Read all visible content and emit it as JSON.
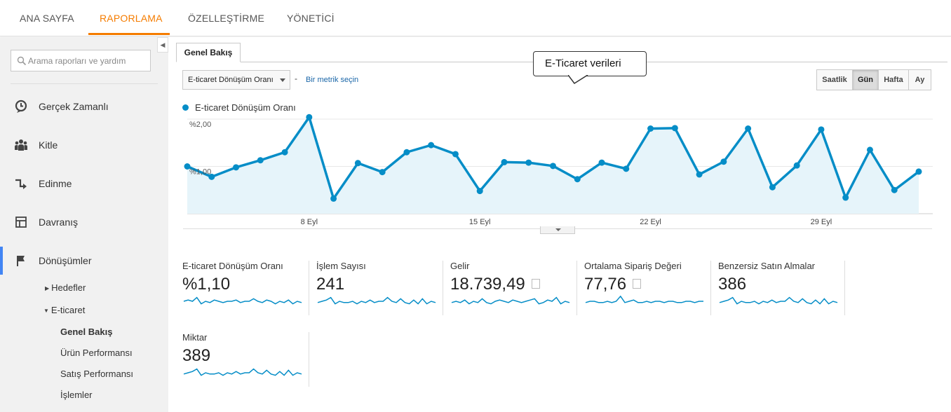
{
  "nav": {
    "tabs": [
      {
        "label": "ANA SAYFA"
      },
      {
        "label": "RAPORLAMA"
      },
      {
        "label": "ÖZELLEŞTİRME"
      },
      {
        "label": "YÖNETİCİ"
      }
    ]
  },
  "sidebar": {
    "search_placeholder": "Arama raporları ve yardım",
    "items": [
      {
        "label": "Gerçek Zamanlı",
        "icon": "clock-icon"
      },
      {
        "label": "Kitle",
        "icon": "people-icon"
      },
      {
        "label": "Edinme",
        "icon": "acquisition-arrows-icon"
      },
      {
        "label": "Davranış",
        "icon": "layout-icon"
      },
      {
        "label": "Dönüşümler",
        "icon": "flag-icon"
      }
    ],
    "sub": {
      "goals": "Hedefler",
      "ecommerce": "E-ticaret",
      "overview": "Genel Bakış",
      "product_performance": "Ürün Performansı",
      "sales_performance": "Satış Performansı",
      "transactions": "İşlemler"
    }
  },
  "main": {
    "tab_label": "Genel Bakış",
    "metric_select": "E-ticaret Dönüşüm Oranı",
    "dash": "-",
    "metric_link": "Bir metrik seçin",
    "callout": "E-Ticaret verileri",
    "periods": [
      "Saatlik",
      "Gün",
      "Hafta",
      "Ay"
    ],
    "active_period": "Gün"
  },
  "chart_data": {
    "type": "area",
    "series": [
      {
        "name": "E-ticaret Dönüşüm Oranı",
        "values": [
          1.0,
          0.78,
          0.98,
          1.13,
          1.3,
          2.04,
          0.32,
          1.07,
          0.88,
          1.3,
          1.45,
          1.26,
          0.48,
          1.09,
          1.08,
          1.01,
          0.73,
          1.08,
          0.95,
          1.8,
          1.81,
          0.83,
          1.1,
          1.8,
          0.56,
          1.02,
          1.78,
          0.34,
          1.35,
          0.5,
          0.89
        ]
      }
    ],
    "y_tick_labels": [
      "%1,00",
      "%2,00"
    ],
    "y_ticks": [
      1.0,
      2.0
    ],
    "ylim": [
      0,
      2.0
    ],
    "x_tick_labels": [
      "8 Eyl",
      "15 Eyl",
      "22 Eyl",
      "29 Eyl"
    ],
    "x_tick_index": [
      5,
      12,
      19,
      26
    ],
    "color": "#058dc7",
    "fill": "#e6f4fa",
    "grid": true,
    "legend": "top-left"
  },
  "kpis": [
    {
      "label": "E-ticaret Dönüşüm Oranı",
      "value": "%1,10",
      "spark": [
        5,
        6,
        5,
        8,
        3,
        5,
        4,
        6,
        5,
        4,
        5,
        5,
        6,
        4,
        5,
        5,
        7,
        5,
        4,
        6,
        5,
        3,
        5,
        4,
        6,
        3,
        5,
        4
      ]
    },
    {
      "label": "İşlem Sayısı",
      "value": "241",
      "spark": [
        4,
        5,
        6,
        8,
        3,
        5,
        4,
        4,
        5,
        3,
        5,
        4,
        6,
        4,
        5,
        5,
        8,
        5,
        4,
        7,
        4,
        3,
        6,
        3,
        7,
        3,
        5,
        4
      ]
    },
    {
      "label": "Gelir",
      "value": "18.739,49",
      "box": true,
      "spark": [
        4,
        5,
        4,
        6,
        3,
        5,
        4,
        7,
        4,
        3,
        5,
        6,
        5,
        4,
        6,
        5,
        4,
        5,
        6,
        7,
        3,
        4,
        6,
        5,
        8,
        3,
        5,
        4
      ]
    },
    {
      "label": "Ortalama Sipariş Değeri",
      "value": "77,76",
      "box": true,
      "spark": [
        4,
        5,
        5,
        4,
        4,
        5,
        4,
        5,
        9,
        4,
        5,
        6,
        4,
        4,
        5,
        4,
        5,
        5,
        4,
        5,
        5,
        4,
        4,
        5,
        5,
        4,
        5,
        5
      ]
    },
    {
      "label": "Benzersiz Satın Almalar",
      "value": "386",
      "spark": [
        4,
        5,
        6,
        8,
        3,
        5,
        4,
        4,
        5,
        3,
        5,
        4,
        6,
        4,
        5,
        5,
        8,
        5,
        4,
        7,
        4,
        3,
        6,
        3,
        7,
        3,
        5,
        4
      ]
    },
    {
      "label": "Miktar",
      "value": "389",
      "spark": [
        4,
        5,
        6,
        8,
        3,
        5,
        4,
        4,
        5,
        3,
        5,
        4,
        6,
        4,
        5,
        5,
        8,
        5,
        4,
        7,
        4,
        3,
        6,
        3,
        7,
        3,
        5,
        4
      ]
    }
  ]
}
